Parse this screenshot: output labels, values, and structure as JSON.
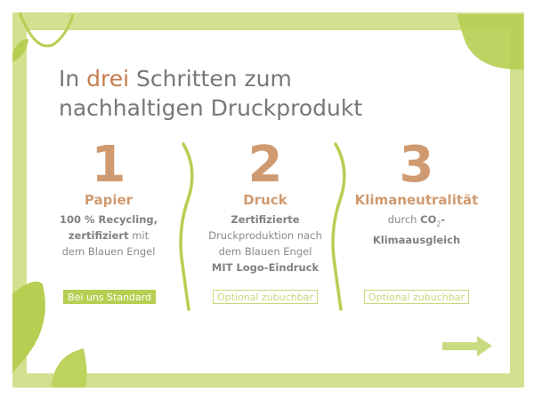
{
  "title": {
    "prefix": "In ",
    "accent": "drei",
    "rest_line1": " Schritten zum",
    "line2": "nachhaltigen Druckprodukt"
  },
  "colors": {
    "frame": "#d3e08f",
    "leaf": "#b6cf52",
    "accent": "#d09a70",
    "text": "#75787b"
  },
  "steps": [
    {
      "number": "1",
      "heading": "Papier",
      "lines": [
        {
          "text": "100 % Recycling,",
          "bold": true
        },
        {
          "text_bold": "zertifiziert",
          "text": " mit"
        },
        {
          "text": "dem Blauen Engel"
        }
      ],
      "badge": "Bei uns Standard"
    },
    {
      "number": "2",
      "heading": "Druck",
      "lines": [
        {
          "text": "Zertifizierte",
          "bold": true
        },
        {
          "text": "Druckproduktion nach"
        },
        {
          "text": "dem Blauen Engel"
        },
        {
          "text": "MIT Logo-Eindruck",
          "bold": true
        }
      ],
      "badge": "Optional zubuchbar"
    },
    {
      "number": "3",
      "heading": "Klimaneutralität",
      "lines": [
        {
          "text": "durch ",
          "text_bold": "CO",
          "sub": "2",
          "after": "-"
        },
        {
          "text": "Klimaausgleich",
          "bold": true
        }
      ],
      "badge": "Optional zubuchbar"
    }
  ],
  "icons": {
    "next": "arrow-right-icon",
    "divider": "wavy-divider",
    "leaf": "leaf-icon"
  }
}
